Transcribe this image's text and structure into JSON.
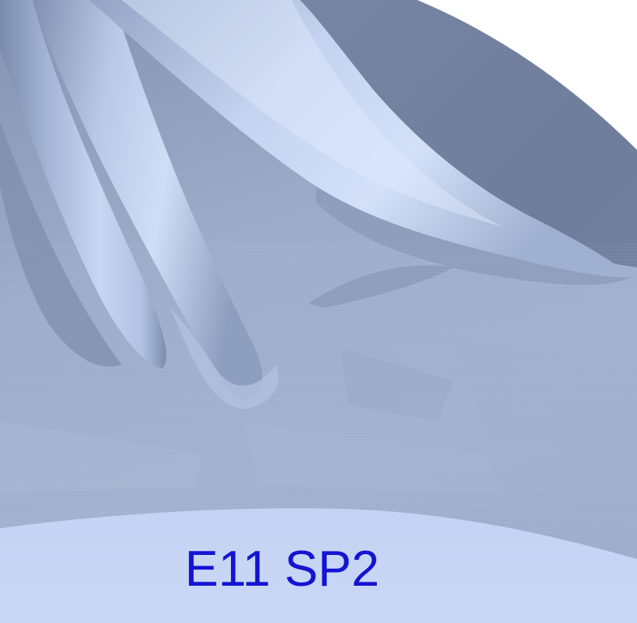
{
  "caption": {
    "text": "E11 SP2",
    "color": "#1414d2"
  },
  "scene": {
    "subject": "rendered-impeller-blades-3d-model",
    "colors": {
      "background": "#ffffff",
      "hub_surface": "#93a3c3",
      "blade_light": "#c2d1ee",
      "blade_dark": "#6f7f9f",
      "shroud_edge": "#c9d7f5"
    }
  }
}
